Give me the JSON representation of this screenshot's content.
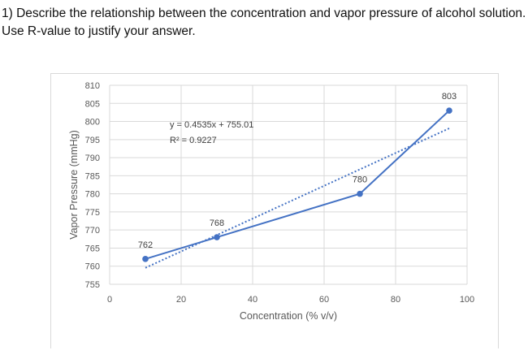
{
  "question": {
    "line1": "1) Describe the relationship between the concentration and vapor pressure of alcohol solution.",
    "line2": "Use R-value to justify your answer."
  },
  "chart_data": {
    "type": "scatter",
    "xlabel": "Concentration (% v/v)",
    "ylabel": "Vapor Pressure (mmHg)",
    "xlim": [
      0,
      100
    ],
    "ylim": [
      755,
      810
    ],
    "xticks": [
      "0",
      "20",
      "40",
      "60",
      "80",
      "100"
    ],
    "yticks": [
      "755",
      "760",
      "765",
      "770",
      "775",
      "780",
      "785",
      "790",
      "795",
      "800",
      "805",
      "810"
    ],
    "grid": true,
    "legend": "none",
    "series": [
      {
        "x": [
          10,
          30,
          70,
          95
        ],
        "values": [
          762,
          768,
          780,
          803
        ],
        "data_labels": [
          "762",
          "768",
          "780",
          "803"
        ],
        "color": "#4472c4",
        "style": "lines+markers"
      }
    ],
    "trendline": {
      "type": "linear",
      "slope": 0.4535,
      "intercept": 755.01,
      "equation": "y = 0.4535x + 755.01",
      "r_squared": "R² = 0.9227",
      "style": "dotted",
      "color": "#4472c4"
    }
  }
}
